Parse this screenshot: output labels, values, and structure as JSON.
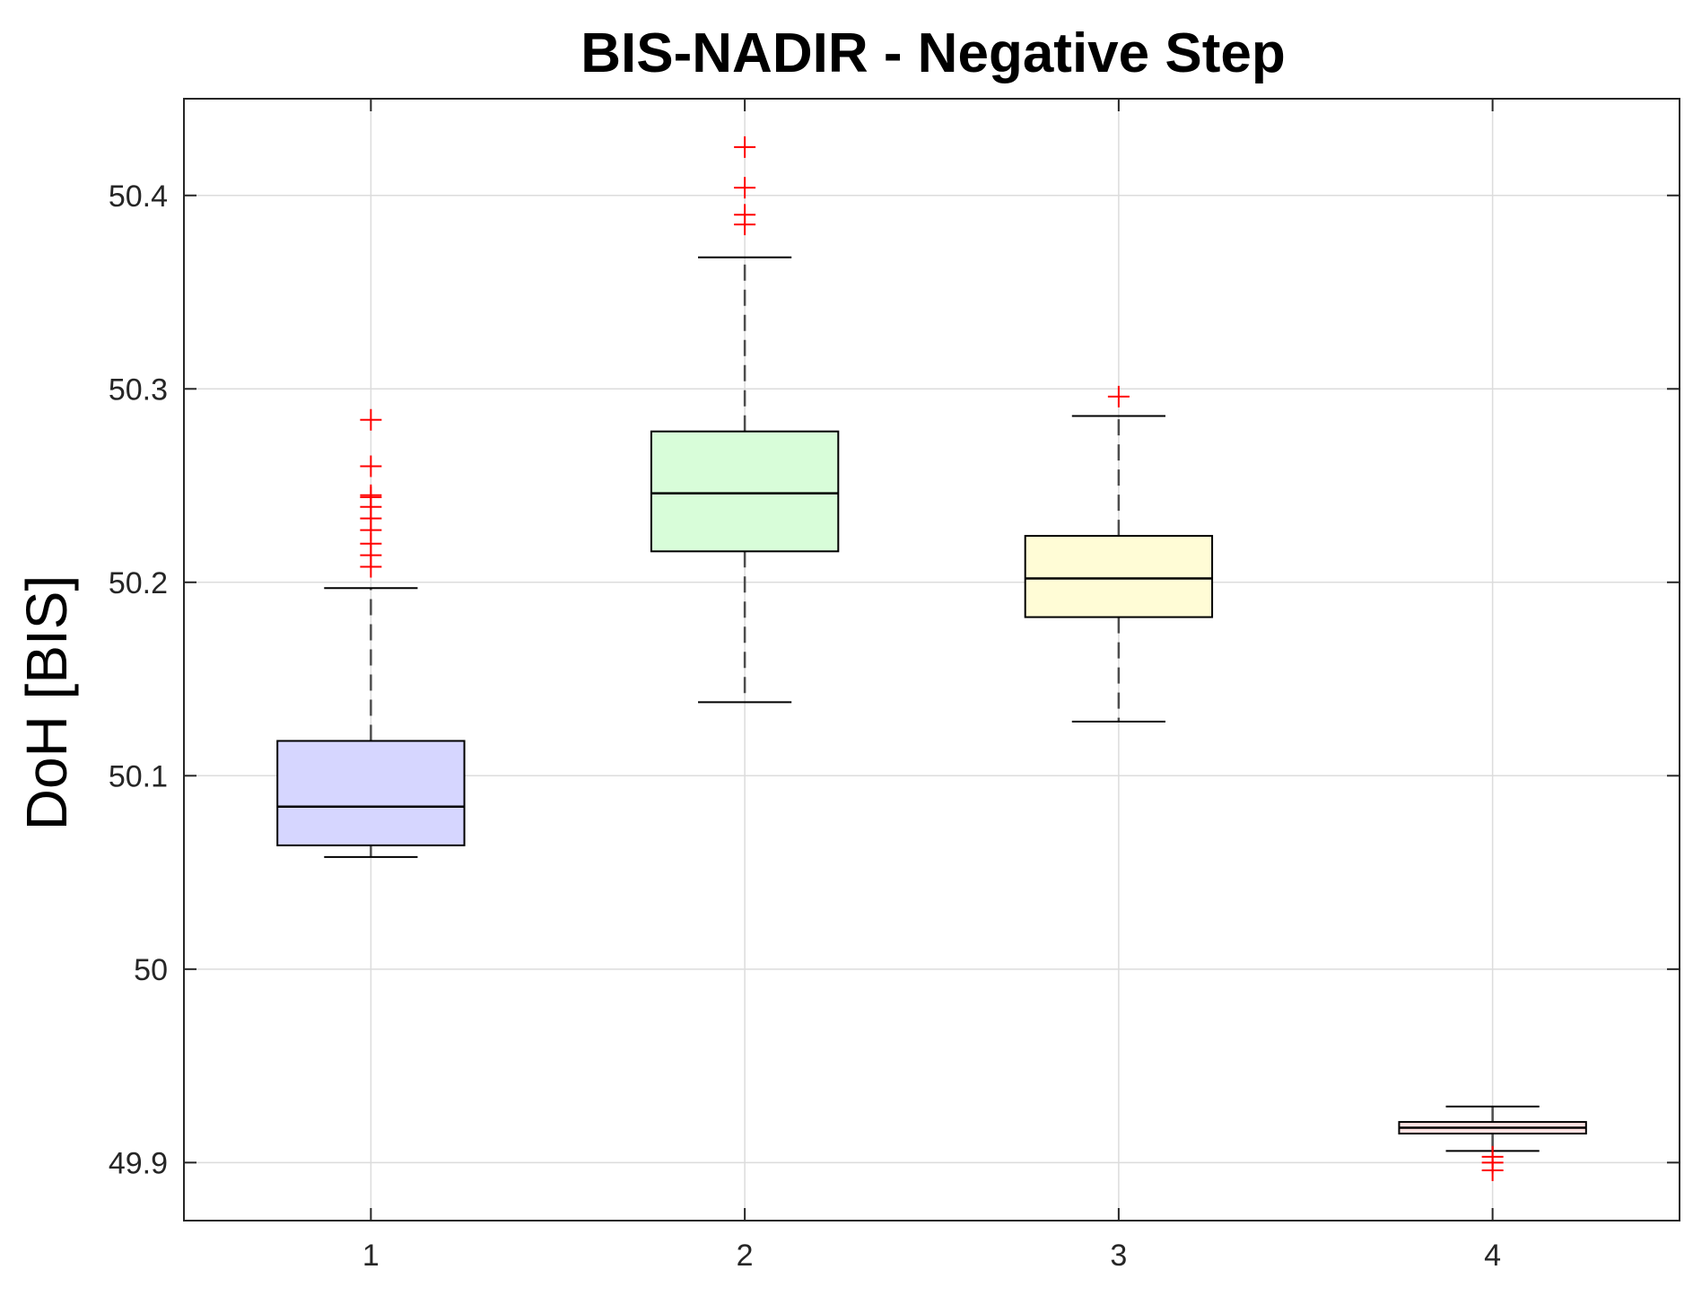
{
  "chart_data": {
    "type": "box",
    "title": "BIS-NADIR - Negative Step",
    "xlabel": "",
    "ylabel": "DoH [BIS]",
    "ylim": [
      49.87,
      50.45
    ],
    "yticks": [
      49.9,
      50,
      50.1,
      50.2,
      50.3,
      50.4
    ],
    "ytick_labels": [
      "49.9",
      "50",
      "50.1",
      "50.2",
      "50.3",
      "50.4"
    ],
    "grid": true,
    "categories": [
      "1",
      "2",
      "3",
      "4"
    ],
    "boxes": [
      {
        "category": "1",
        "whisker_low": 50.058,
        "q1": 50.064,
        "median": 50.084,
        "q3": 50.118,
        "whisker_high": 50.197,
        "outliers": [
          50.208,
          50.214,
          50.22,
          50.227,
          50.233,
          50.239,
          50.244,
          50.245,
          50.26,
          50.284
        ],
        "fill": "#d6d6ff"
      },
      {
        "category": "2",
        "whisker_low": 50.138,
        "q1": 50.216,
        "median": 50.246,
        "q3": 50.278,
        "whisker_high": 50.368,
        "outliers": [
          50.385,
          50.39,
          50.404,
          50.425
        ],
        "fill": "#d8fdd9"
      },
      {
        "category": "3",
        "whisker_low": 50.128,
        "q1": 50.182,
        "median": 50.202,
        "q3": 50.224,
        "whisker_high": 50.286,
        "outliers": [
          50.296
        ],
        "fill": "#fffcd6"
      },
      {
        "category": "4",
        "whisker_low": 49.906,
        "q1": 49.915,
        "median": 49.918,
        "q3": 49.921,
        "whisker_high": 49.929,
        "outliers": [
          49.896,
          49.9,
          49.903
        ],
        "fill": "#ffe2e2"
      }
    ],
    "colors": {
      "outlier": "#ff0000",
      "median": "#000000",
      "box_edge": "#000000",
      "whisker": "#4d4d4d",
      "grid": "#dcdcdc",
      "axes": "#262626"
    }
  }
}
